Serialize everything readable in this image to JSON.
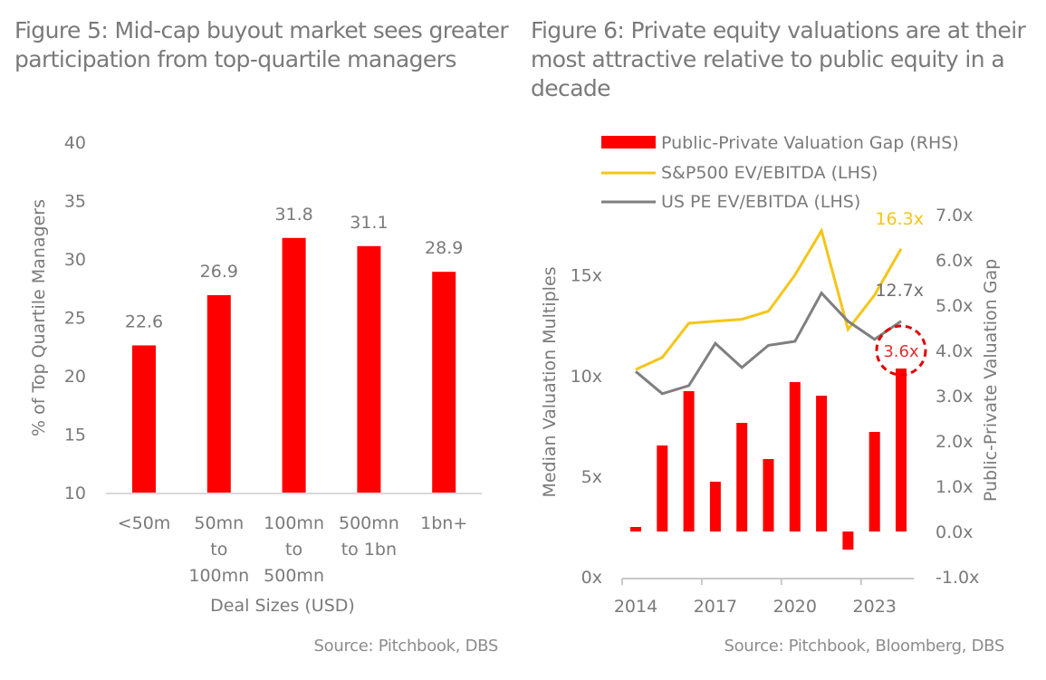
{
  "figure5": {
    "title": "Figure 5: Mid-cap buyout market sees greater participation from top-quartile managers",
    "source": "Source: Pitchbook, DBS"
  },
  "figure6": {
    "title": "Figure 6: Private equity valuations are at their most attractive relative to public equity in a decade",
    "source": "Source: Pitchbook, Bloomberg, DBS"
  },
  "colors": {
    "bar_red": "#ff0000",
    "sp500_yellow": "#f5c518",
    "uspe_gray": "#7f7f7f",
    "text_gray": "#7a7a7a",
    "axis_gray": "#d0d0d0",
    "annotation_red": "#e00000"
  },
  "chart_data": [
    {
      "type": "bar",
      "title": "Figure 5: Mid-cap buyout market sees greater participation from top-quartile managers",
      "categories": [
        [
          "<50m"
        ],
        [
          "50mn",
          "to",
          "100mn"
        ],
        [
          "100mn",
          "to",
          "500mn"
        ],
        [
          "500mn",
          "to 1bn"
        ],
        [
          "1bn+"
        ]
      ],
      "values": [
        22.6,
        26.9,
        31.8,
        31.1,
        28.9
      ],
      "data_labels": [
        "22.6",
        "26.9",
        "31.8",
        "31.1",
        "28.9"
      ],
      "xlabel": "Deal Sizes (USD)",
      "ylabel": "% of Top Quartile Managers",
      "ylim": [
        10,
        40
      ],
      "yticks": [
        10,
        15,
        20,
        25,
        30,
        35,
        40
      ],
      "grid": false,
      "source": "Source: Pitchbook, DBS"
    },
    {
      "type": "bar+line",
      "title": "Figure 6: Private equity valuations are at their most attractive relative to public equity in a decade",
      "x": [
        2014,
        2015,
        2016,
        2017,
        2018,
        2019,
        2020,
        2021,
        2022,
        2023,
        2024
      ],
      "xtick_labels": [
        "2014",
        "2017",
        "2020",
        "2023"
      ],
      "series": [
        {
          "name": "Public-Private Valuation Gap (RHS)",
          "type": "bar",
          "axis": "right",
          "values": [
            0.1,
            1.9,
            3.1,
            1.1,
            2.4,
            1.6,
            3.3,
            3.0,
            -0.4,
            2.2,
            3.6
          ]
        },
        {
          "name": "S&P500 EV/EBITDA (LHS)",
          "type": "line",
          "axis": "left",
          "values": [
            10.3,
            10.9,
            12.6,
            12.7,
            12.8,
            13.2,
            15.0,
            17.2,
            12.3,
            14.0,
            16.3
          ]
        },
        {
          "name": "US PE EV/EBITDA (LHS)",
          "type": "line",
          "axis": "left",
          "values": [
            10.2,
            9.1,
            9.5,
            11.6,
            10.4,
            11.5,
            11.7,
            14.1,
            12.7,
            11.8,
            12.7
          ]
        }
      ],
      "annotations": [
        {
          "text": "16.3x",
          "series": "S&P500 EV/EBITDA (LHS)",
          "x": 2024
        },
        {
          "text": "12.7x",
          "series": "US PE EV/EBITDA (LHS)",
          "x": 2024
        },
        {
          "text": "3.6x",
          "series": "Public-Private Valuation Gap (RHS)",
          "x": 2024,
          "style": "dashed-circle"
        }
      ],
      "ylabel_left": "Median Valuation Multiples",
      "ylim_left": [
        0,
        18
      ],
      "yticks_left": [
        "0x",
        "5x",
        "10x",
        "15x"
      ],
      "yticks_left_values": [
        0,
        5,
        10,
        15
      ],
      "ylabel_right": "Public-Private Valuation Gap",
      "ylim_right": [
        -1,
        7
      ],
      "yticks_right": [
        "-1.0x",
        "0.0x",
        "1.0x",
        "2.0x",
        "3.0x",
        "4.0x",
        "5.0x",
        "6.0x",
        "7.0x"
      ],
      "yticks_right_values": [
        -1,
        0,
        1,
        2,
        3,
        4,
        5,
        6,
        7
      ],
      "legend_position": "top-left",
      "grid": false,
      "source": "Source: Pitchbook, Bloomberg, DBS"
    }
  ]
}
